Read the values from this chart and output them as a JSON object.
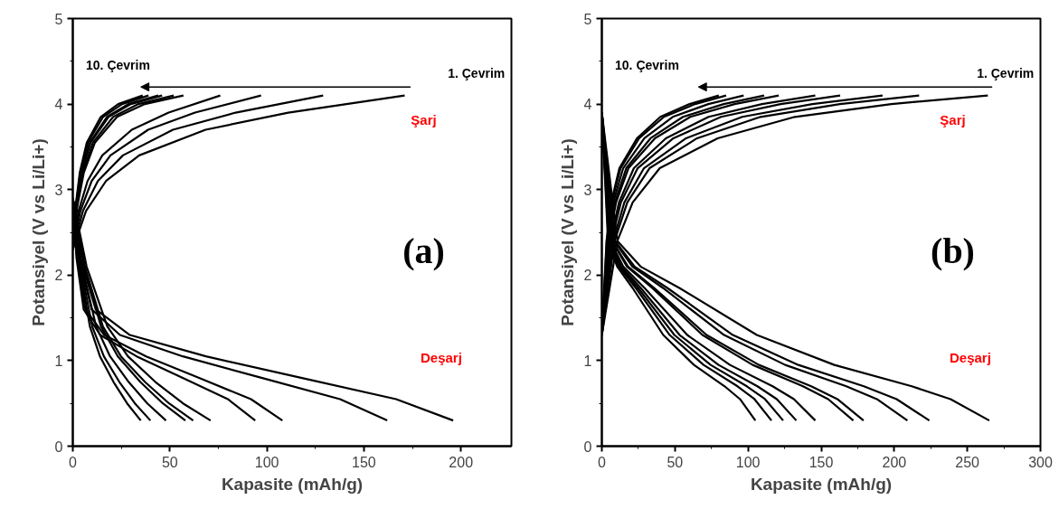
{
  "chart_data": [
    {
      "type": "line",
      "xlabel": "Kapasite (mAh/g)",
      "ylabel": "Potansiyel (V vs Li/Li+)",
      "xlim": [
        0,
        226
      ],
      "ylim": [
        0,
        5
      ],
      "xticks": [
        0,
        50,
        100,
        150,
        200
      ],
      "yticks": [
        0,
        1,
        2,
        3,
        4,
        5
      ],
      "grid": false,
      "line_style": "solid",
      "marker": "none",
      "annotations": [
        "10. Çevrim",
        "1. Çevrim",
        "Şarj",
        "Deşarj",
        "(a)"
      ],
      "series": [
        {
          "color": "#000000",
          "x": [
            0,
            1.4,
            3.6,
            7.2,
            14.4,
            23.4,
            36
          ],
          "values": [
            2.3,
            2.8,
            3.2,
            3.55,
            3.85,
            4.0,
            4.1
          ]
        },
        {
          "color": "#000000",
          "x": [
            0,
            1.6,
            3.9,
            7.8,
            15.6,
            25.4,
            39
          ],
          "values": [
            2.3,
            2.8,
            3.2,
            3.55,
            3.85,
            4.0,
            4.1
          ]
        },
        {
          "color": "#000000",
          "x": [
            0,
            1.8,
            4.4,
            8.8,
            17.6,
            28.6,
            44
          ],
          "values": [
            2.3,
            2.8,
            3.2,
            3.55,
            3.85,
            4.0,
            4.1
          ]
        },
        {
          "color": "#000000",
          "x": [
            0,
            1.8,
            4.6,
            9.2,
            18.4,
            29.9,
            46
          ],
          "values": [
            2.3,
            2.8,
            3.2,
            3.55,
            3.85,
            4.0,
            4.1
          ]
        },
        {
          "color": "#000000",
          "x": [
            0,
            2.1,
            5.2,
            10.4,
            20.8,
            33.8,
            52
          ],
          "values": [
            2.3,
            2.8,
            3.2,
            3.55,
            3.85,
            4.0,
            4.1
          ]
        },
        {
          "color": "#000000",
          "x": [
            0,
            2.3,
            5.7,
            11.4,
            22.8,
            37.1,
            57
          ],
          "values": [
            2.3,
            2.8,
            3.2,
            3.55,
            3.85,
            4.0,
            4.1
          ]
        },
        {
          "color": "#000000",
          "x": [
            0,
            3,
            7.6,
            15.2,
            30.4,
            49.4,
            76
          ],
          "values": [
            2.3,
            2.75,
            3.1,
            3.4,
            3.7,
            3.9,
            4.1
          ]
        },
        {
          "color": "#000000",
          "x": [
            0,
            3.9,
            9.7,
            19.4,
            38.8,
            63,
            97
          ],
          "values": [
            2.3,
            2.75,
            3.1,
            3.4,
            3.7,
            3.9,
            4.1
          ]
        },
        {
          "color": "#000000",
          "x": [
            0,
            5.2,
            12.9,
            25.8,
            51.6,
            83.9,
            129
          ],
          "values": [
            2.3,
            2.75,
            3.1,
            3.4,
            3.7,
            3.9,
            4.1
          ]
        },
        {
          "color": "#000000",
          "x": [
            0,
            6.8,
            17.1,
            34.2,
            68.4,
            111,
            171
          ],
          "values": [
            2.3,
            2.75,
            3.1,
            3.4,
            3.7,
            3.9,
            4.1
          ]
        },
        {
          "color": "#000000",
          "x": [
            0,
            3.5,
            8.8,
            14,
            21,
            28,
            35
          ],
          "values": [
            2.9,
            2.1,
            1.4,
            1.05,
            0.75,
            0.5,
            0.3
          ]
        },
        {
          "color": "#000000",
          "x": [
            0,
            4,
            10,
            16,
            24,
            32,
            40
          ],
          "values": [
            2.9,
            2.1,
            1.4,
            1.05,
            0.75,
            0.5,
            0.3
          ]
        },
        {
          "color": "#000000",
          "x": [
            0,
            4.8,
            12,
            19.2,
            28.8,
            38.4,
            48
          ],
          "values": [
            2.9,
            2.1,
            1.4,
            1.05,
            0.75,
            0.5,
            0.3
          ]
        },
        {
          "color": "#000000",
          "x": [
            0,
            5.8,
            14.5,
            23.2,
            34.8,
            46.4,
            58
          ],
          "values": [
            2.9,
            2.1,
            1.4,
            1.05,
            0.75,
            0.5,
            0.3
          ]
        },
        {
          "color": "#000000",
          "x": [
            0,
            6.2,
            15.5,
            24.8,
            37.2,
            49.6,
            62
          ],
          "values": [
            2.9,
            2.1,
            1.4,
            1.05,
            0.75,
            0.5,
            0.3
          ]
        },
        {
          "color": "#000000",
          "x": [
            0,
            7.1,
            17.8,
            28.4,
            42.6,
            56.8,
            71
          ],
          "values": [
            2.9,
            2.1,
            1.4,
            1.05,
            0.75,
            0.5,
            0.3
          ]
        },
        {
          "color": "#000000",
          "x": [
            0,
            1.9,
            5.6,
            14.1,
            32.9,
            56.4,
            79.9,
            94
          ],
          "values": [
            2.9,
            2.2,
            1.6,
            1.3,
            1.05,
            0.8,
            0.55,
            0.3
          ]
        },
        {
          "color": "#000000",
          "x": [
            0,
            2.2,
            6.5,
            16.2,
            37.8,
            64.8,
            91.8,
            108
          ],
          "values": [
            2.9,
            2.2,
            1.6,
            1.3,
            1.05,
            0.8,
            0.55,
            0.3
          ]
        },
        {
          "color": "#000000",
          "x": [
            0,
            3.2,
            9.7,
            24.3,
            56.7,
            97.2,
            137.7,
            162
          ],
          "values": [
            2.9,
            2.2,
            1.6,
            1.3,
            1.05,
            0.8,
            0.55,
            0.3
          ]
        },
        {
          "color": "#000000",
          "x": [
            0,
            3.9,
            11.8,
            29.4,
            68.6,
            117.6,
            166.6,
            196
          ],
          "values": [
            2.9,
            2.2,
            1.6,
            1.3,
            1.05,
            0.8,
            0.55,
            0.3
          ]
        }
      ]
    },
    {
      "type": "line",
      "xlabel": "Kapasite (mAh/g)",
      "ylabel": "Potansiyel (V vs Li/Li+)",
      "xlim": [
        0,
        300
      ],
      "ylim": [
        0,
        5
      ],
      "xticks": [
        0,
        50,
        100,
        150,
        200,
        250,
        300
      ],
      "yticks": [
        0,
        1,
        2,
        3,
        4,
        5
      ],
      "grid": false,
      "line_style": "solid",
      "marker": "none",
      "annotations": [
        "10. Çevrim",
        "1. Çevrim",
        "Şarj",
        "Deşarj",
        "(b)"
      ],
      "series": [
        {
          "color": "#000000",
          "x": [
            0,
            3.2,
            6.4,
            12,
            24,
            40,
            60,
            80
          ],
          "values": [
            1.3,
            2.4,
            2.85,
            3.25,
            3.6,
            3.85,
            4.0,
            4.1
          ]
        },
        {
          "color": "#000000",
          "x": [
            0,
            3.4,
            6.8,
            12.8,
            25.5,
            42.5,
            63.8,
            85
          ],
          "values": [
            1.3,
            2.4,
            2.85,
            3.25,
            3.6,
            3.85,
            4.0,
            4.1
          ]
        },
        {
          "color": "#000000",
          "x": [
            0,
            3.9,
            7.8,
            14.6,
            29.1,
            48.5,
            72.8,
            97
          ],
          "values": [
            1.3,
            2.4,
            2.85,
            3.25,
            3.6,
            3.85,
            4.0,
            4.1
          ]
        },
        {
          "color": "#000000",
          "x": [
            0,
            4.4,
            8.9,
            16.7,
            33.3,
            55.5,
            83.3,
            111
          ],
          "values": [
            1.3,
            2.4,
            2.85,
            3.25,
            3.6,
            3.85,
            4.0,
            4.1
          ]
        },
        {
          "color": "#000000",
          "x": [
            0,
            4.8,
            9.7,
            18.2,
            36.3,
            60.5,
            90.8,
            121
          ],
          "values": [
            1.3,
            2.4,
            2.85,
            3.25,
            3.6,
            3.85,
            4.0,
            4.1
          ]
        },
        {
          "color": "#000000",
          "x": [
            0,
            5.8,
            11.7,
            21.9,
            43.8,
            73,
            109.5,
            146
          ],
          "values": [
            1.3,
            2.4,
            2.85,
            3.25,
            3.6,
            3.85,
            4.0,
            4.1
          ]
        },
        {
          "color": "#000000",
          "x": [
            0,
            6.5,
            13,
            24.5,
            48.9,
            81.5,
            122.3,
            163
          ],
          "values": [
            1.3,
            2.4,
            2.85,
            3.25,
            3.6,
            3.85,
            4.0,
            4.1
          ]
        },
        {
          "color": "#000000",
          "x": [
            0,
            7.7,
            15.4,
            28.8,
            57.6,
            96,
            144,
            192
          ],
          "values": [
            1.3,
            2.4,
            2.85,
            3.25,
            3.6,
            3.85,
            4.0,
            4.1
          ]
        },
        {
          "color": "#000000",
          "x": [
            0,
            8.7,
            17.4,
            32.6,
            65.1,
            108.5,
            162.8,
            217
          ],
          "values": [
            1.3,
            2.4,
            2.85,
            3.25,
            3.6,
            3.85,
            4.0,
            4.1
          ]
        },
        {
          "color": "#000000",
          "x": [
            0,
            10.6,
            21.1,
            39.6,
            79.2,
            132,
            198,
            264
          ],
          "values": [
            1.3,
            2.4,
            2.85,
            3.25,
            3.6,
            3.85,
            4.0,
            4.1
          ]
        },
        {
          "color": "#000000",
          "x": [
            0,
            4.2,
            10.5,
            21,
            42,
            63,
            84,
            94.5,
            105
          ],
          "values": [
            3.9,
            2.4,
            2.1,
            1.85,
            1.3,
            0.95,
            0.7,
            0.55,
            0.3
          ]
        },
        {
          "color": "#000000",
          "x": [
            0,
            4.6,
            11.6,
            23.2,
            46.4,
            69.6,
            92.8,
            104.4,
            116
          ],
          "values": [
            3.9,
            2.4,
            2.1,
            1.85,
            1.3,
            0.95,
            0.7,
            0.55,
            0.3
          ]
        },
        {
          "color": "#000000",
          "x": [
            0,
            5,
            12.4,
            24.8,
            49.6,
            74.4,
            99.2,
            111.6,
            124
          ],
          "values": [
            3.9,
            2.4,
            2.1,
            1.85,
            1.3,
            0.95,
            0.7,
            0.55,
            0.3
          ]
        },
        {
          "color": "#000000",
          "x": [
            0,
            5.3,
            13.3,
            26.6,
            53.2,
            79.8,
            106.4,
            119.7,
            133
          ],
          "values": [
            3.9,
            2.4,
            2.1,
            1.85,
            1.3,
            0.95,
            0.7,
            0.55,
            0.3
          ]
        },
        {
          "color": "#000000",
          "x": [
            0,
            5.8,
            14.6,
            29.2,
            58.4,
            87.6,
            116.8,
            131.4,
            146
          ],
          "values": [
            3.9,
            2.4,
            2.1,
            1.85,
            1.3,
            0.95,
            0.7,
            0.55,
            0.3
          ]
        },
        {
          "color": "#000000",
          "x": [
            0,
            6.9,
            17.2,
            34.4,
            68.8,
            103.2,
            137.6,
            154.8,
            172
          ],
          "values": [
            3.9,
            2.4,
            2.1,
            1.85,
            1.3,
            0.95,
            0.7,
            0.55,
            0.3
          ]
        },
        {
          "color": "#000000",
          "x": [
            0,
            7.2,
            17.9,
            35.8,
            71.6,
            107.4,
            143.2,
            161.1,
            179
          ],
          "values": [
            3.9,
            2.4,
            2.1,
            1.85,
            1.3,
            0.95,
            0.7,
            0.55,
            0.3
          ]
        },
        {
          "color": "#000000",
          "x": [
            0,
            8.4,
            20.9,
            41.8,
            83.6,
            125.4,
            167.2,
            188.1,
            209
          ],
          "values": [
            3.9,
            2.4,
            2.1,
            1.85,
            1.3,
            0.95,
            0.7,
            0.55,
            0.3
          ]
        },
        {
          "color": "#000000",
          "x": [
            0,
            9,
            22.4,
            44.8,
            89.6,
            134.4,
            179.2,
            201.6,
            224
          ],
          "values": [
            3.9,
            2.4,
            2.1,
            1.85,
            1.3,
            0.95,
            0.7,
            0.55,
            0.3
          ]
        },
        {
          "color": "#000000",
          "x": [
            0,
            10.6,
            26.5,
            53,
            106,
            159,
            212,
            238.5,
            265
          ],
          "values": [
            3.9,
            2.4,
            2.1,
            1.85,
            1.3,
            0.95,
            0.7,
            0.55,
            0.3
          ]
        }
      ]
    }
  ]
}
